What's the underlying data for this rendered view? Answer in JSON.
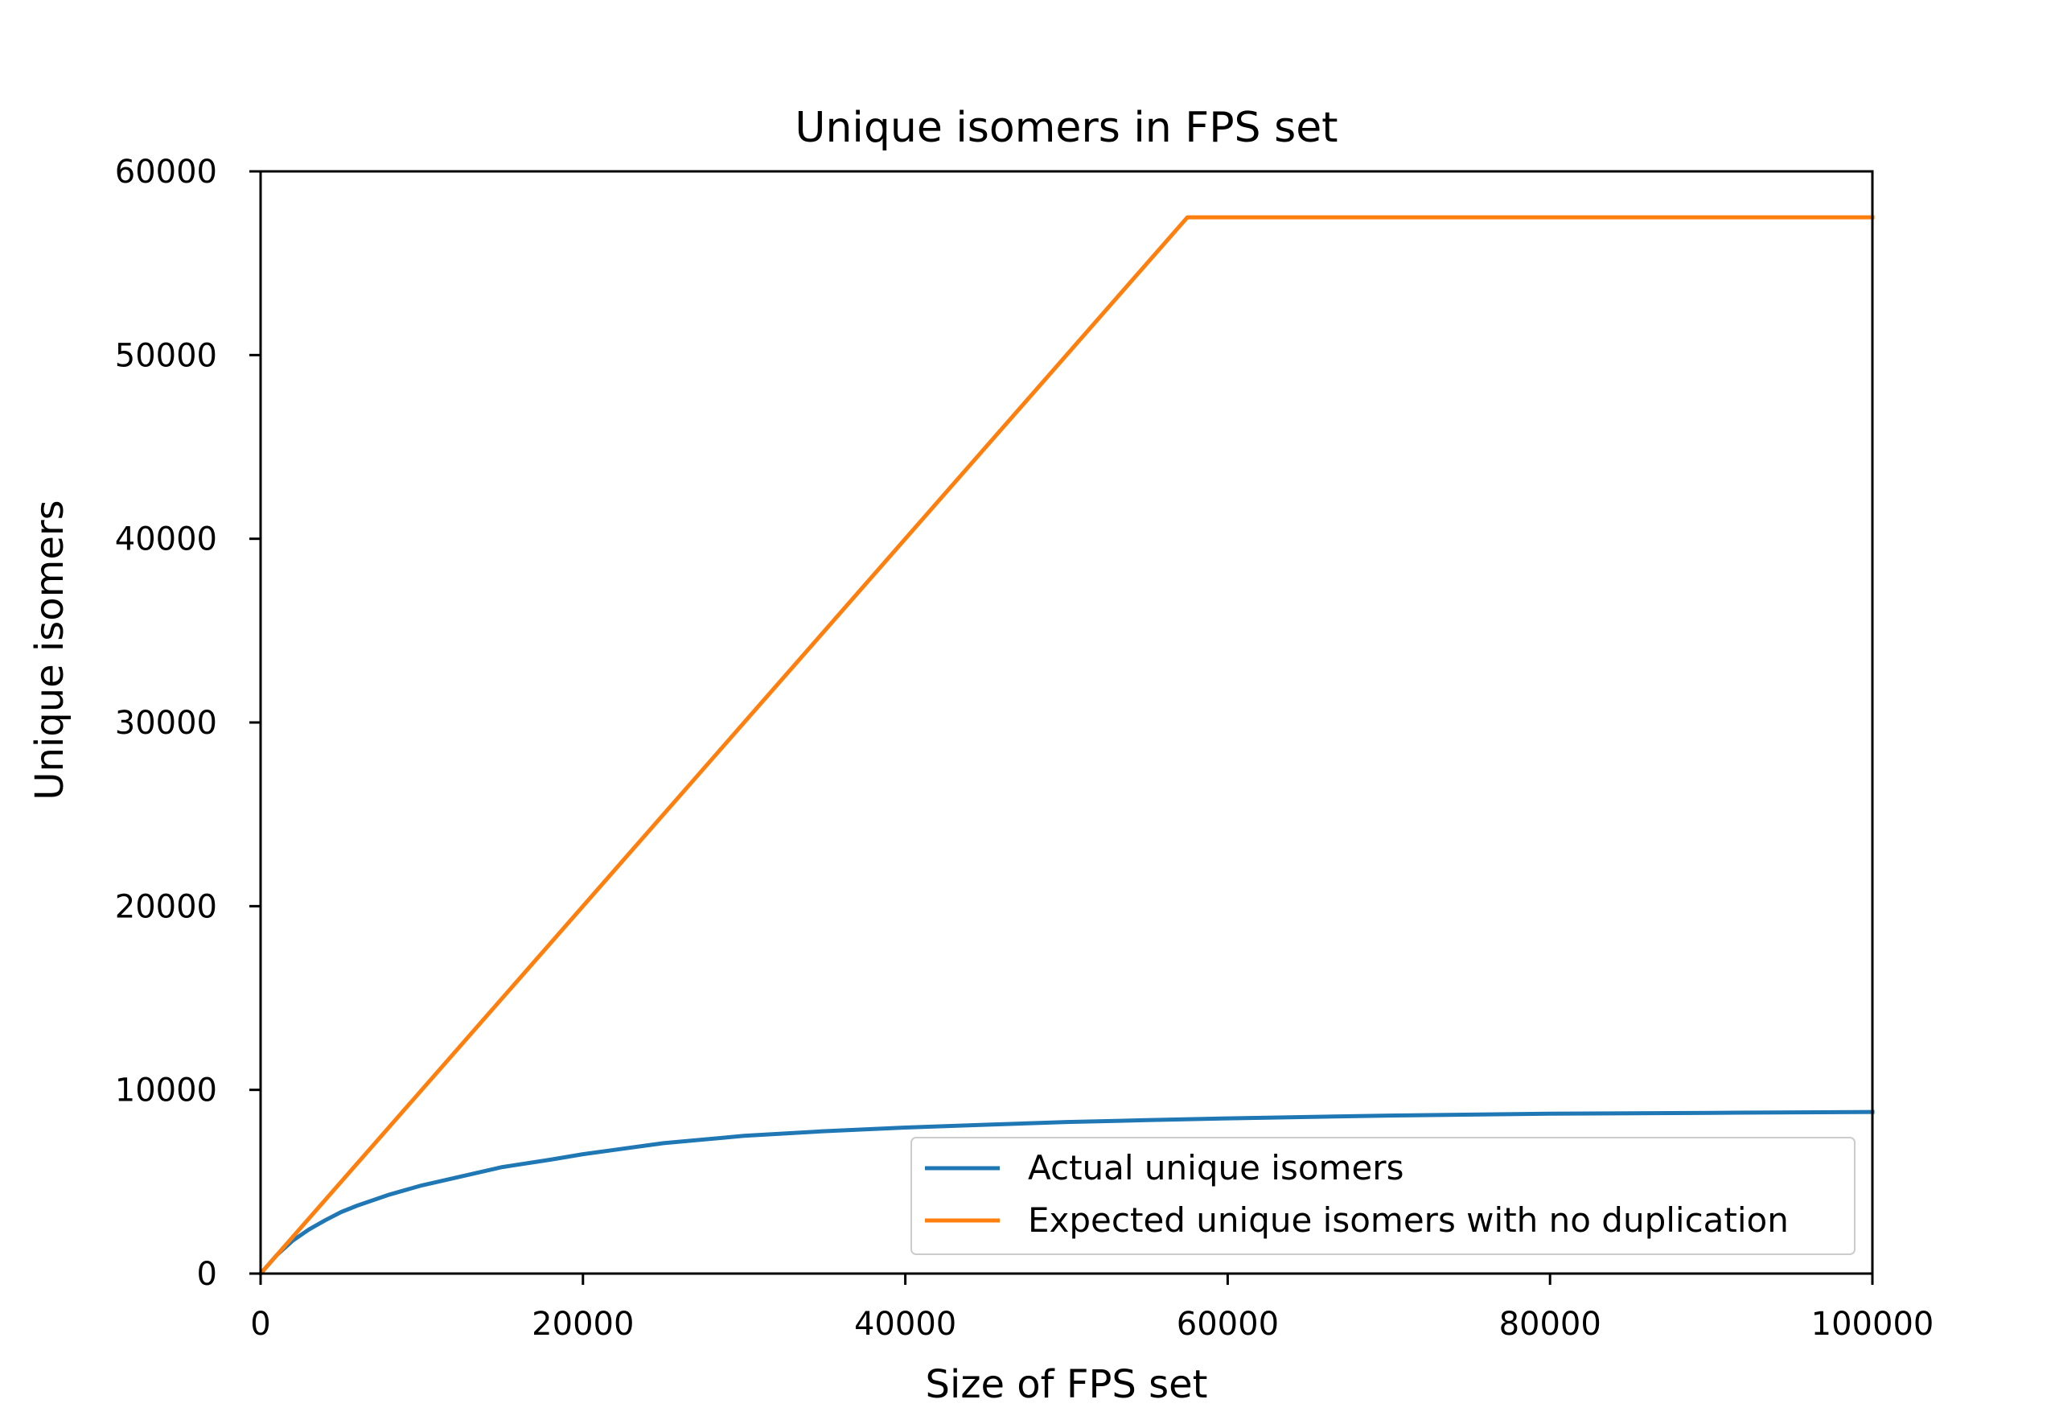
{
  "chart_data": {
    "type": "line",
    "title": "Unique isomers in FPS set",
    "xlabel": "Size of FPS set",
    "ylabel": "Unique isomers",
    "xlim": [
      0,
      100000
    ],
    "ylim": [
      0,
      60000
    ],
    "xticks": [
      "0",
      "20000",
      "40000",
      "60000",
      "80000",
      "100000"
    ],
    "yticks": [
      "0",
      "10000",
      "20000",
      "30000",
      "40000",
      "50000",
      "60000"
    ],
    "grid": false,
    "legend_position": "lower-right",
    "series": [
      {
        "name": "Actual unique isomers",
        "color": "#1f77b4",
        "x": [
          0,
          1000,
          2000,
          3000,
          4000,
          5000,
          6000,
          8000,
          10000,
          12000,
          15000,
          18000,
          20000,
          25000,
          30000,
          35000,
          40000,
          45000,
          50000,
          55000,
          60000,
          70000,
          80000,
          90000,
          100000
        ],
        "y": [
          0,
          1000,
          1800,
          2400,
          2900,
          3350,
          3700,
          4300,
          4800,
          5200,
          5800,
          6200,
          6500,
          7100,
          7500,
          7750,
          7950,
          8100,
          8250,
          8350,
          8450,
          8600,
          8700,
          8750,
          8800
        ]
      },
      {
        "name": "Expected unique isomers with no duplication",
        "color": "#ff7f0e",
        "x": [
          0,
          57500,
          100000
        ],
        "y": [
          0,
          57500,
          57500
        ]
      }
    ]
  }
}
